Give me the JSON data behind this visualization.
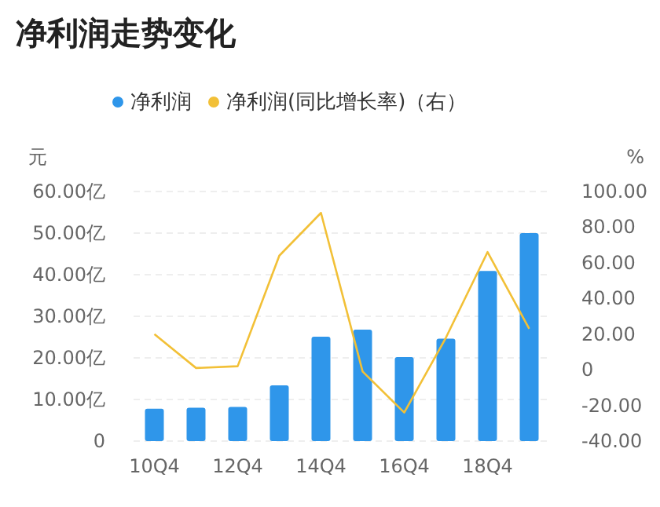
{
  "chart_data": {
    "type": "bar",
    "title": "净利润走势变化",
    "ylabel": "元",
    "y2label": "%",
    "categories": [
      "10Q4",
      null,
      "12Q4",
      null,
      "14Q4",
      null,
      "16Q4",
      null,
      "18Q4",
      null
    ],
    "series": [
      {
        "name": "净利润",
        "color": "#2f96ea",
        "values": [
          7.8,
          8.0,
          8.2,
          13.4,
          25.1,
          26.8,
          20.2,
          24.6,
          40.9,
          50.0
        ]
      },
      {
        "name": "净利润(同比增长率)（右）",
        "type": "line",
        "axis": "y2",
        "color": "#f2c037",
        "values": [
          20,
          1,
          2,
          64,
          88,
          -1,
          -24,
          18,
          66,
          23
        ]
      }
    ],
    "ylim": [
      0,
      60
    ],
    "yticks": [
      0,
      {
        "value": 10,
        "label": "10.00亿"
      },
      {
        "value": 20,
        "label": "20.00亿"
      },
      {
        "value": 30,
        "label": "30.00亿"
      },
      {
        "value": 40,
        "label": "40.00亿"
      },
      {
        "value": 50,
        "label": "50.00亿"
      },
      {
        "value": 60,
        "label": "60.00亿"
      }
    ],
    "y2lim": [
      -40,
      100
    ],
    "y2ticks": [
      {
        "value": -40,
        "label": "-40.00"
      },
      {
        "value": -20,
        "label": "-20.00"
      },
      0,
      {
        "value": 20,
        "label": "20.00"
      },
      {
        "value": 40,
        "label": "40.00"
      },
      {
        "value": 60,
        "label": "60.00"
      },
      {
        "value": 80,
        "label": "80.00"
      },
      {
        "value": 100,
        "label": "100.00"
      }
    ],
    "grid": "y",
    "legend": "top"
  }
}
